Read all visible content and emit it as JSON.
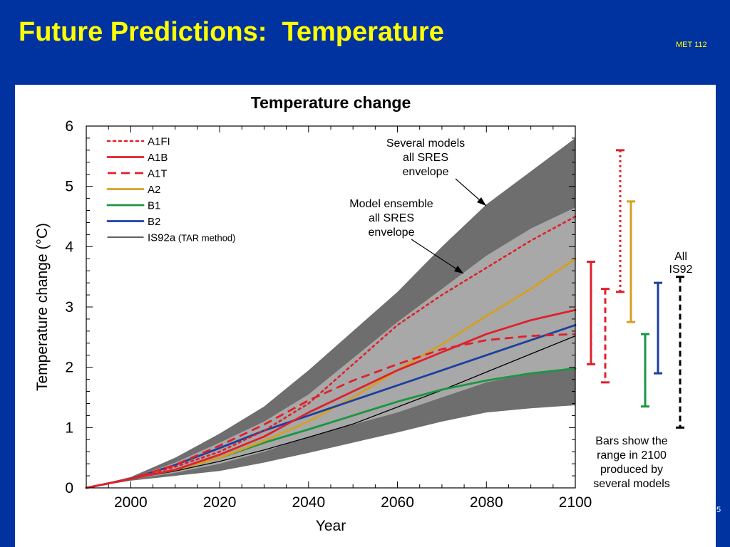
{
  "slide": {
    "title": "Future Predictions:  Temperature",
    "course": "MET 112",
    "page_number": "5"
  },
  "colors": {
    "background": "#0033a0",
    "title": "#ffff00",
    "A1FI": "#e0202a",
    "A1B": "#e0202a",
    "A1T": "#e0202a",
    "A2": "#d4a020",
    "B1": "#1a9641",
    "B2": "#1c3f9e",
    "IS92a": "#000000",
    "envelope_outer": "#6e6e6e",
    "envelope_inner": "#a8a8a8"
  },
  "chart_data": {
    "type": "line",
    "title": "Temperature change",
    "xlabel": "Year",
    "ylabel": "Temperature change (°C)",
    "xlim": [
      1990,
      2100
    ],
    "ylim": [
      0,
      6
    ],
    "x_ticks": [
      2000,
      2020,
      2040,
      2060,
      2080,
      2100
    ],
    "y_ticks": [
      0,
      1,
      2,
      3,
      4,
      5,
      6
    ],
    "grid": false,
    "legend_position": "top-left",
    "series": [
      {
        "name": "A1FI",
        "style": "dotted",
        "x": [
          1990,
          2000,
          2010,
          2020,
          2030,
          2040,
          2050,
          2060,
          2070,
          2080,
          2090,
          2100
        ],
        "y": [
          0,
          0.15,
          0.35,
          0.6,
          0.95,
          1.4,
          2.05,
          2.7,
          3.2,
          3.65,
          4.1,
          4.5
        ]
      },
      {
        "name": "A1B",
        "style": "solid",
        "x": [
          1990,
          2000,
          2010,
          2020,
          2030,
          2040,
          2050,
          2060,
          2070,
          2080,
          2090,
          2100
        ],
        "y": [
          0,
          0.15,
          0.3,
          0.55,
          0.85,
          1.25,
          1.6,
          1.95,
          2.25,
          2.55,
          2.78,
          2.95
        ]
      },
      {
        "name": "A1T",
        "style": "dashed",
        "x": [
          1990,
          2000,
          2010,
          2020,
          2030,
          2040,
          2050,
          2060,
          2070,
          2080,
          2090,
          2100
        ],
        "y": [
          0,
          0.15,
          0.38,
          0.7,
          1.05,
          1.45,
          1.78,
          2.05,
          2.3,
          2.45,
          2.52,
          2.55
        ]
      },
      {
        "name": "A2",
        "style": "solid",
        "x": [
          1990,
          2000,
          2010,
          2020,
          2030,
          2040,
          2050,
          2060,
          2070,
          2080,
          2090,
          2100
        ],
        "y": [
          0,
          0.15,
          0.3,
          0.5,
          0.78,
          1.1,
          1.5,
          1.95,
          2.38,
          2.85,
          3.3,
          3.8
        ]
      },
      {
        "name": "B1",
        "style": "solid",
        "x": [
          1990,
          2000,
          2010,
          2020,
          2030,
          2040,
          2050,
          2060,
          2070,
          2080,
          2090,
          2100
        ],
        "y": [
          0,
          0.15,
          0.3,
          0.5,
          0.75,
          0.97,
          1.2,
          1.43,
          1.63,
          1.78,
          1.9,
          1.98
        ]
      },
      {
        "name": "B2",
        "style": "solid",
        "x": [
          1990,
          2000,
          2010,
          2020,
          2030,
          2040,
          2050,
          2060,
          2070,
          2080,
          2090,
          2100
        ],
        "y": [
          0,
          0.15,
          0.38,
          0.66,
          0.95,
          1.2,
          1.45,
          1.7,
          1.95,
          2.2,
          2.45,
          2.7
        ]
      },
      {
        "name": "IS92a",
        "name_note": "(TAR method)",
        "style": "thin",
        "x": [
          1990,
          2000,
          2010,
          2020,
          2030,
          2040,
          2050,
          2060,
          2070,
          2080,
          2090,
          2100
        ],
        "y": [
          0,
          0.15,
          0.28,
          0.44,
          0.63,
          0.84,
          1.06,
          1.34,
          1.62,
          1.92,
          2.22,
          2.52
        ]
      }
    ],
    "envelopes": [
      {
        "name": "outer",
        "x": [
          1990,
          2000,
          2010,
          2020,
          2030,
          2040,
          2050,
          2060,
          2070,
          2080,
          2090,
          2100
        ],
        "lower": [
          0,
          0.12,
          0.2,
          0.28,
          0.42,
          0.58,
          0.75,
          0.92,
          1.1,
          1.25,
          1.32,
          1.37
        ],
        "upper": [
          0,
          0.18,
          0.5,
          0.9,
          1.35,
          1.95,
          2.6,
          3.25,
          4.0,
          4.7,
          5.25,
          5.8
        ]
      },
      {
        "name": "inner",
        "x": [
          1990,
          2000,
          2010,
          2020,
          2030,
          2040,
          2050,
          2060,
          2070,
          2080,
          2090,
          2100
        ],
        "lower": [
          0,
          0.14,
          0.25,
          0.4,
          0.6,
          0.85,
          1.05,
          1.25,
          1.5,
          1.75,
          1.9,
          2.0
        ],
        "upper": [
          0,
          0.16,
          0.42,
          0.75,
          1.1,
          1.55,
          2.15,
          2.75,
          3.3,
          3.85,
          4.3,
          4.65
        ]
      }
    ],
    "range_bars_2100": [
      {
        "scenario": "A1B",
        "style": "solid",
        "low": 2.05,
        "high": 3.75
      },
      {
        "scenario": "A1T",
        "style": "dashed",
        "low": 1.75,
        "high": 3.3
      },
      {
        "scenario": "A1FI",
        "style": "dotted",
        "low": 3.25,
        "high": 5.6
      },
      {
        "scenario": "A2",
        "style": "solid",
        "low": 2.75,
        "high": 4.75
      },
      {
        "scenario": "B1",
        "style": "solid",
        "low": 1.35,
        "high": 2.55
      },
      {
        "scenario": "B2",
        "style": "solid",
        "low": 1.9,
        "high": 3.4
      },
      {
        "scenario": "IS92a",
        "style": "dashed",
        "low": 1.0,
        "high": 3.5
      }
    ],
    "annotations": [
      {
        "text": [
          "Several models",
          "all SRES",
          "envelope"
        ]
      },
      {
        "text": [
          "Model ensemble",
          "all SRES",
          "envelope"
        ]
      },
      {
        "text": [
          "All",
          "IS92"
        ]
      },
      {
        "text": [
          "Bars show the",
          "range in 2100",
          "produced by",
          "several models"
        ]
      }
    ]
  }
}
